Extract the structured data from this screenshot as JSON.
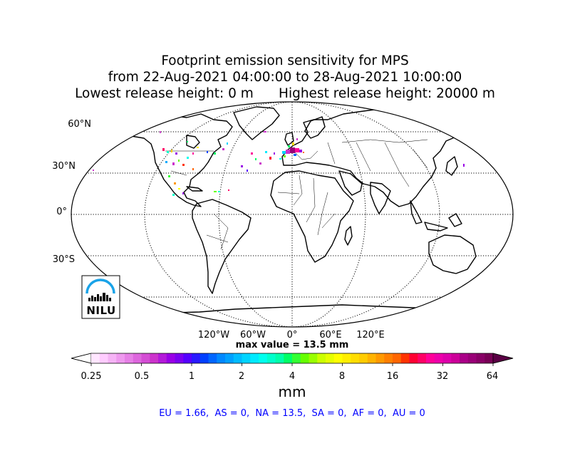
{
  "title": {
    "line1": "Footprint emission sensitivity for MPS",
    "line2": "from 22-Aug-2021 04:00:00 to 28-Aug-2021 10:00:00",
    "line3": "Lowest release height: 0 m      Highest release height: 20000 m"
  },
  "map": {
    "projection": "robinson",
    "lat_labels": [
      "60°N",
      "30°N",
      "0°",
      "30°S"
    ],
    "lon_labels": [
      "120°W",
      "60°W",
      "0°",
      "60°E",
      "120°E"
    ],
    "logo_text": "NILU",
    "logo_icon": "nilu-logo"
  },
  "max_value": "max value = 13.5 mm",
  "colorbar": {
    "ticks": [
      "0.25",
      "0.5",
      "1",
      "2",
      "4",
      "8",
      "16",
      "32",
      "64"
    ],
    "units": "mm",
    "colors": [
      "#ffe6ff",
      "#ffccff",
      "#f5b3f5",
      "#ee99ee",
      "#e680e6",
      "#dd66dd",
      "#d44dd4",
      "#cc33cc",
      "#b31ad9",
      "#9900e6",
      "#7a00f0",
      "#5500ff",
      "#2a1aff",
      "#0040ff",
      "#0066ff",
      "#0088ff",
      "#00a0ff",
      "#00bbff",
      "#00d4ff",
      "#00eaff",
      "#00ffee",
      "#00ffcc",
      "#00ffaa",
      "#00ff66",
      "#33ff33",
      "#66ff00",
      "#99ff00",
      "#ccff00",
      "#e6ff00",
      "#ffff00",
      "#ffee00",
      "#ffdd00",
      "#ffcc00",
      "#ffb300",
      "#ff9900",
      "#ff7f00",
      "#ff6600",
      "#ff3300",
      "#ff0033",
      "#ff0066",
      "#ff0099",
      "#ee00aa",
      "#dd00aa",
      "#cc0099",
      "#aa0088",
      "#990077",
      "#880066",
      "#770055"
    ]
  },
  "stats": "EU = 1.66,  AS = 0,  NA = 13.5,  SA = 0,  AF = 0,  AU = 0"
}
